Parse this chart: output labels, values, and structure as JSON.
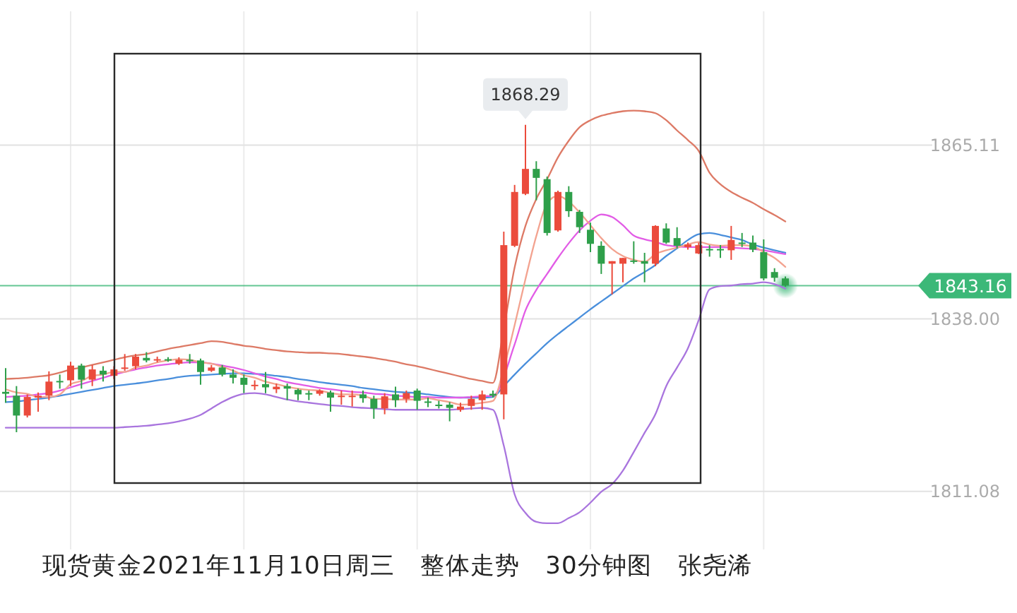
{
  "chart_data": {
    "type": "candlestick",
    "title": "现货黄金2021年11月10日周三 整体走势 30分钟图 张尧浠",
    "categories": [
      null,
      null,
      null,
      null,
      null,
      null,
      null,
      null,
      null,
      null,
      null,
      null,
      null,
      null,
      null,
      null,
      null,
      null,
      null,
      null,
      null,
      null,
      null,
      null,
      null,
      null,
      null,
      null,
      null,
      null,
      null,
      null,
      null,
      null,
      null,
      null,
      null,
      null,
      null,
      null,
      null,
      null,
      null,
      null,
      null,
      null,
      null,
      null,
      null,
      null,
      null,
      null,
      null,
      null,
      null,
      null,
      null,
      null,
      null,
      null,
      null,
      null,
      null,
      null,
      null,
      null,
      null,
      null,
      null,
      null,
      null,
      null,
      null
    ],
    "ohlc": [
      [
        1826.6,
        1830.3,
        1824.9,
        1826.3
      ],
      [
        1826.0,
        1827.5,
        1820.3,
        1822.9
      ],
      [
        1822.9,
        1826.2,
        1822.6,
        1825.8
      ],
      [
        1825.7,
        1826.5,
        1823.5,
        1826.0
      ],
      [
        1826.0,
        1829.8,
        1825.3,
        1828.2
      ],
      [
        1828.3,
        1829.3,
        1827.1,
        1828.1
      ],
      [
        1828.4,
        1831.3,
        1827.5,
        1830.7
      ],
      [
        1830.7,
        1831.0,
        1827.1,
        1828.5
      ],
      [
        1828.5,
        1830.8,
        1827.5,
        1830.1
      ],
      [
        1829.9,
        1830.6,
        1828.2,
        1829.3
      ],
      [
        1829.1,
        1830.6,
        1828.6,
        1830.1
      ],
      [
        1830.2,
        1832.5,
        1829.9,
        1830.4
      ],
      [
        1830.6,
        1832.5,
        1830.1,
        1832.1
      ],
      [
        1831.9,
        1832.8,
        1831.2,
        1831.5
      ],
      [
        1831.6,
        1832.1,
        1831.2,
        1831.7
      ],
      [
        1831.7,
        1832.0,
        1831.3,
        1831.6
      ],
      [
        1831.0,
        1832.0,
        1830.8,
        1831.6
      ],
      [
        1831.6,
        1832.5,
        1831.0,
        1831.5
      ],
      [
        1831.5,
        1831.8,
        1827.7,
        1829.7
      ],
      [
        1829.9,
        1830.8,
        1829.7,
        1830.4
      ],
      [
        1830.4,
        1830.8,
        1829.0,
        1829.3
      ],
      [
        1829.3,
        1830.1,
        1827.9,
        1828.8
      ],
      [
        1828.8,
        1829.3,
        1826.4,
        1827.7
      ],
      [
        1827.6,
        1828.4,
        1826.9,
        1827.7
      ],
      [
        1827.8,
        1829.7,
        1826.4,
        1827.3
      ],
      [
        1827.0,
        1827.9,
        1826.4,
        1827.4
      ],
      [
        1827.5,
        1827.9,
        1825.3,
        1827.1
      ],
      [
        1826.9,
        1827.1,
        1825.3,
        1826.2
      ],
      [
        1826.4,
        1826.8,
        1825.3,
        1826.3
      ],
      [
        1826.3,
        1827.0,
        1826.0,
        1826.8
      ],
      [
        1826.5,
        1826.8,
        1823.5,
        1825.7
      ],
      [
        1825.8,
        1826.8,
        1824.6,
        1826.0
      ],
      [
        1825.9,
        1826.8,
        1824.3,
        1826.0
      ],
      [
        1826.2,
        1826.8,
        1824.9,
        1825.6
      ],
      [
        1825.5,
        1826.0,
        1822.4,
        1824.0
      ],
      [
        1824.0,
        1826.4,
        1823.1,
        1825.9
      ],
      [
        1826.2,
        1827.4,
        1824.2,
        1825.3
      ],
      [
        1825.5,
        1826.8,
        1824.9,
        1826.4
      ],
      [
        1826.8,
        1827.1,
        1823.8,
        1825.2
      ],
      [
        1825.1,
        1825.7,
        1824.2,
        1825.0
      ],
      [
        1824.6,
        1825.2,
        1824.0,
        1824.5
      ],
      [
        1824.6,
        1825.0,
        1822.0,
        1824.1
      ],
      [
        1823.8,
        1824.9,
        1823.5,
        1824.3
      ],
      [
        1824.4,
        1826.0,
        1823.8,
        1825.5
      ],
      [
        1825.3,
        1826.8,
        1823.8,
        1826.2
      ],
      [
        1826.3,
        1826.8,
        1825.7,
        1826.0
      ],
      [
        1826.2,
        1851.6,
        1822.3,
        1849.5
      ],
      [
        1849.4,
        1858.9,
        1849.2,
        1857.8
      ],
      [
        1857.5,
        1868.29,
        1857.3,
        1861.4
      ],
      [
        1861.4,
        1862.6,
        1856.5,
        1860.0
      ],
      [
        1859.8,
        1860.2,
        1851.0,
        1851.4
      ],
      [
        1851.8,
        1858.0,
        1851.6,
        1857.8
      ],
      [
        1857.8,
        1858.7,
        1853.9,
        1854.8
      ],
      [
        1854.7,
        1855.0,
        1851.4,
        1852.3
      ],
      [
        1851.9,
        1853.0,
        1848.4,
        1849.7
      ],
      [
        1849.4,
        1850.1,
        1845.0,
        1846.6
      ],
      [
        1846.6,
        1847.0,
        1841.8,
        1847.0
      ],
      [
        1846.6,
        1847.5,
        1843.7,
        1847.5
      ],
      [
        1847.1,
        1850.1,
        1846.6,
        1847.0
      ],
      [
        1847.0,
        1848.3,
        1843.7,
        1846.6
      ],
      [
        1846.6,
        1852.6,
        1846.2,
        1852.5
      ],
      [
        1852.1,
        1852.9,
        1849.7,
        1849.9
      ],
      [
        1850.6,
        1852.3,
        1849.0,
        1849.4
      ],
      [
        1849.2,
        1849.9,
        1848.8,
        1849.6
      ],
      [
        1848.2,
        1849.9,
        1848.1,
        1849.5
      ],
      [
        1848.9,
        1849.5,
        1847.7,
        1848.7
      ],
      [
        1848.9,
        1849.5,
        1847.5,
        1848.7
      ],
      [
        1848.7,
        1852.5,
        1847.2,
        1850.3
      ],
      [
        1849.9,
        1851.4,
        1849.2,
        1849.8
      ],
      [
        1849.9,
        1851.0,
        1848.4,
        1848.8
      ],
      [
        1848.4,
        1850.4,
        1844.0,
        1844.3
      ],
      [
        1845.3,
        1845.9,
        1843.8,
        1844.4
      ],
      [
        1844.3,
        1844.6,
        1843.0,
        1843.2
      ]
    ],
    "colors": [
      "#2e9f4a",
      "#2e9f4a",
      "#eb4b3c",
      "#eb4b3c",
      "#eb4b3c",
      "#2e9f4a",
      "#eb4b3c",
      "#2e9f4a",
      "#eb4b3c",
      "#2e9f4a",
      "#eb4b3c",
      "#eb4b3c",
      "#eb4b3c",
      "#2e9f4a",
      "#eb4b3c",
      "#2e9f4a",
      "#eb4b3c",
      "#2e9f4a",
      "#2e9f4a",
      "#eb4b3c",
      "#2e9f4a",
      "#2e9f4a",
      "#2e9f4a",
      "#eb4b3c",
      "#2e9f4a",
      "#eb4b3c",
      "#2e9f4a",
      "#2e9f4a",
      "#2e9f4a",
      "#eb4b3c",
      "#2e9f4a",
      "#eb4b3c",
      "#eb4b3c",
      "#2e9f4a",
      "#2e9f4a",
      "#eb4b3c",
      "#2e9f4a",
      "#eb4b3c",
      "#2e9f4a",
      "#2e9f4a",
      "#2e9f4a",
      "#2e9f4a",
      "#eb4b3c",
      "#eb4b3c",
      "#eb4b3c",
      "#2e9f4a",
      "#eb4b3c",
      "#eb4b3c",
      "#eb4b3c",
      "#2e9f4a",
      "#2e9f4a",
      "#eb4b3c",
      "#2e9f4a",
      "#2e9f4a",
      "#2e9f4a",
      "#2e9f4a",
      "#eb4b3c",
      "#eb4b3c",
      "#2e9f4a",
      "#2e9f4a",
      "#eb4b3c",
      "#2e9f4a",
      "#2e9f4a",
      "#eb4b3c",
      "#eb4b3c",
      "#2e9f4a",
      "#2e9f4a",
      "#eb4b3c",
      "#2e9f4a",
      "#2e9f4a",
      "#2e9f4a",
      "#2e9f4a",
      "#2e9f4a"
    ],
    "series": [
      {
        "type": "line",
        "color": "#dd7a66",
        "values": [
          1828.6,
          1828.7,
          1828.8,
          1829.0,
          1829.2,
          1829.6,
          1830.1,
          1830.4,
          1830.8,
          1831.2,
          1831.6,
          1832.0,
          1832.3,
          1832.5,
          1832.9,
          1833.3,
          1833.6,
          1833.9,
          1834.2,
          1834.5,
          1834.4,
          1834.1,
          1833.8,
          1833.6,
          1833.3,
          1833.1,
          1832.9,
          1832.8,
          1832.7,
          1832.7,
          1832.6,
          1832.5,
          1832.3,
          1832.1,
          1831.9,
          1831.6,
          1831.3,
          1830.9,
          1830.6,
          1830.2,
          1829.8,
          1829.4,
          1829.0,
          1828.6,
          1828.3,
          1828.0,
          1836.5,
          1846.0,
          1852.5,
          1856.7,
          1859.8,
          1863.2,
          1865.8,
          1867.9,
          1869.0,
          1869.7,
          1870.1,
          1870.4,
          1870.5,
          1870.4,
          1870.1,
          1869.0,
          1867.4,
          1865.9,
          1864.2,
          1860.8,
          1859.0,
          1857.8,
          1856.9,
          1856.1,
          1855.1,
          1854.2,
          1853.2
        ]
      },
      {
        "type": "line",
        "color": "#a975de",
        "values": [
          1821.0,
          1821.0,
          1821.0,
          1821.0,
          1821.0,
          1821.0,
          1821.0,
          1821.0,
          1821.0,
          1821.0,
          1821.0,
          1821.1,
          1821.2,
          1821.3,
          1821.5,
          1821.7,
          1822.0,
          1822.4,
          1823.0,
          1824.0,
          1825.0,
          1825.8,
          1826.3,
          1826.4,
          1826.2,
          1825.8,
          1825.4,
          1825.1,
          1824.9,
          1824.7,
          1824.5,
          1824.4,
          1824.2,
          1824.1,
          1824.0,
          1823.9,
          1823.8,
          1823.8,
          1823.8,
          1823.8,
          1823.8,
          1823.8,
          1823.9,
          1824.0,
          1824.1,
          1823.8,
          1818.2,
          1810.6,
          1807.7,
          1806.3,
          1806.1,
          1806.1,
          1806.9,
          1807.8,
          1809.3,
          1811.0,
          1812.2,
          1814.3,
          1817.2,
          1820.2,
          1823.1,
          1827.5,
          1830.4,
          1833.4,
          1837.8,
          1842.6,
          1843.1,
          1843.2,
          1843.4,
          1843.5,
          1843.7,
          1843.4,
          1842.7
        ]
      },
      {
        "type": "line",
        "color": "#4a8fdc",
        "values": [
          1825.0,
          1825.1,
          1825.3,
          1825.5,
          1825.7,
          1826.0,
          1826.3,
          1826.6,
          1826.9,
          1827.2,
          1827.5,
          1827.7,
          1827.9,
          1828.1,
          1828.4,
          1828.6,
          1828.9,
          1829.1,
          1829.2,
          1829.3,
          1829.4,
          1829.5,
          1829.5,
          1829.4,
          1829.3,
          1829.1,
          1828.9,
          1828.6,
          1828.4,
          1828.1,
          1827.9,
          1827.7,
          1827.5,
          1827.2,
          1827.0,
          1826.8,
          1826.6,
          1826.5,
          1826.4,
          1826.2,
          1826.0,
          1825.8,
          1825.7,
          1825.7,
          1825.7,
          1825.8,
          1827.5,
          1829.3,
          1831.0,
          1832.6,
          1834.2,
          1835.6,
          1836.9,
          1838.2,
          1839.5,
          1840.7,
          1841.9,
          1843.1,
          1844.3,
          1845.3,
          1846.4,
          1847.8,
          1849.0,
          1850.3,
          1851.2,
          1851.4,
          1851.1,
          1850.7,
          1850.3,
          1849.6,
          1849.1,
          1848.7,
          1848.3
        ]
      },
      {
        "type": "line",
        "color": "#e25ce6",
        "values": [
          1825.8,
          1825.9,
          1826.0,
          1826.2,
          1826.4,
          1826.8,
          1827.3,
          1827.8,
          1828.3,
          1828.8,
          1829.3,
          1829.7,
          1830.1,
          1830.4,
          1830.7,
          1830.9,
          1831.1,
          1831.2,
          1831.2,
          1831.0,
          1830.7,
          1830.4,
          1830.0,
          1829.5,
          1829.0,
          1828.6,
          1828.1,
          1827.8,
          1827.5,
          1827.2,
          1827.0,
          1826.8,
          1826.6,
          1826.5,
          1826.3,
          1826.2,
          1826.0,
          1825.9,
          1825.8,
          1825.8,
          1825.7,
          1825.7,
          1825.7,
          1825.8,
          1825.9,
          1826.0,
          null,
          1834.0,
          1839.3,
          1842.5,
          1845.0,
          1847.5,
          1849.8,
          1851.8,
          1853.3,
          1854.3,
          1853.9,
          1852.6,
          1851.0,
          1850.4,
          1850.0,
          1849.5,
          1849.3,
          1849.2,
          1849.2,
          1849.2,
          1849.2,
          1849.1,
          1849.0,
          1848.9,
          1848.7,
          1848.4,
          1848.1
        ]
      },
      {
        "type": "line",
        "color": "#f3a390",
        "values": [
          1827.0,
          1826.5,
          1826.3,
          1825.8,
          1825.8,
          1826.2,
          1827.8,
          1828.3,
          1829.1,
          1829.3,
          1829.7,
          1829.7,
          1830.4,
          1830.7,
          1831.2,
          1831.5,
          1831.7,
          1831.6,
          1831.2,
          1831.0,
          1830.5,
          1829.9,
          1829.2,
          1828.8,
          1828.2,
          1827.8,
          1827.4,
          1827.1,
          1826.9,
          1826.8,
          1826.4,
          1826.2,
          1826.2,
          1826.0,
          1825.5,
          1825.5,
          1825.4,
          1825.4,
          1825.4,
          1825.6,
          1825.3,
          1825.0,
          1824.6,
          1824.7,
          1824.9,
          1825.2,
          1830.3,
          1837.0,
          1844.2,
          1850.9,
          1856.0,
          1857.2,
          1856.3,
          1854.6,
          1852.6,
          1850.6,
          1848.9,
          1847.8,
          1847.2,
          1846.9,
          1848.1,
          1848.7,
          1849.1,
          1849.6,
          1850.0,
          1849.6,
          1849.4,
          1849.5,
          1849.5,
          1849.3,
          1848.4,
          1847.5,
          1846.1
        ]
      }
    ],
    "ylim": [
      1802,
      1886
    ],
    "yticks": [
      1811.08,
      {
        "value": 1838,
        "label": "1838.00"
      },
      1865.11
    ],
    "grid": true,
    "tick_labels": "y",
    "annotations": [
      {
        "text": "1868.29",
        "y": 1868.29
      }
    ],
    "ref_lines": [
      {
        "axis": "y",
        "value": 1843.16,
        "label": "1843.16",
        "color": "#3cb878"
      }
    ]
  }
}
